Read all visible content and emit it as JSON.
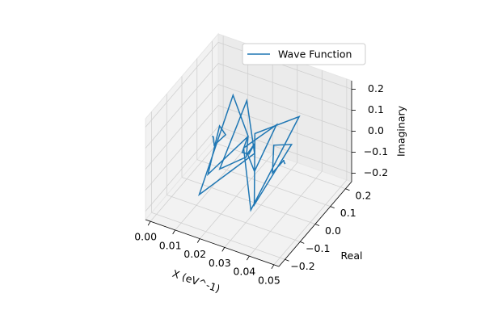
{
  "chart_data": {
    "type": "line3d",
    "xlabel": "X (eV^-1)",
    "ylabel": "Real",
    "zlabel": "Imaginary",
    "xlim": [
      -0.002,
      0.052
    ],
    "ylim": [
      -0.24,
      0.24
    ],
    "zlim": [
      -0.24,
      0.24
    ],
    "xticks": [
      {
        "value": 0,
        "label": "0.00"
      },
      0.01,
      0.02,
      0.03,
      0.04,
      0.05
    ],
    "yticks": [
      {
        "value": -0.2,
        "label": "−0.2"
      },
      {
        "value": -0.1,
        "label": "−0.1"
      },
      {
        "value": 0,
        "label": "0.0"
      },
      0.1,
      0.2
    ],
    "zticks": [
      {
        "value": -0.2,
        "label": "−0.2"
      },
      {
        "value": -0.1,
        "label": "−0.1"
      },
      {
        "value": 0,
        "label": "0.0"
      },
      0.1,
      0.2
    ],
    "grid": true,
    "legend": "upper right",
    "series": [
      {
        "name": "Wave Function",
        "color": "#1f77b4",
        "x": [
          0.01,
          0.011,
          0.012,
          0.013,
          0.014,
          0.015,
          0.016,
          0.017,
          0.018,
          0.019,
          0.02,
          0.021,
          0.022,
          0.023,
          0.024,
          0.025,
          0.026,
          0.027,
          0.028,
          0.029,
          0.03,
          0.031,
          0.032,
          0.033,
          0.034,
          0.035,
          0.036,
          0.037,
          0.038,
          0.039,
          0.04
        ],
        "y": [
          0.004,
          -0.004,
          -0.015,
          0.044,
          -0.012,
          -0.105,
          0.144,
          0.028,
          -0.211,
          0.137,
          0.07,
          -0.125,
          0.034,
          0.03,
          -0.026,
          0.003,
          0.023,
          -0.04,
          -0.01,
          0.119,
          -0.114,
          -0.083,
          0.22,
          -0.089,
          -0.109,
          0.121,
          -0.013,
          -0.038,
          0.02,
          0.001,
          -0.004
        ],
        "z": [
          0,
          0.009,
          -0.017,
          -0.013,
          0.08,
          -0.068,
          -0.092,
          0.205,
          -0.063,
          -0.155,
          0.156,
          -0.001,
          -0.073,
          0.036,
          0.007,
          -0.02,
          0.015,
          0.025,
          -0.08,
          0.037,
          0.127,
          -0.19,
          0.004,
          0.187,
          -0.131,
          -0.033,
          0.08,
          -0.026,
          -0.012,
          0.01,
          -0.001
        ]
      }
    ]
  }
}
